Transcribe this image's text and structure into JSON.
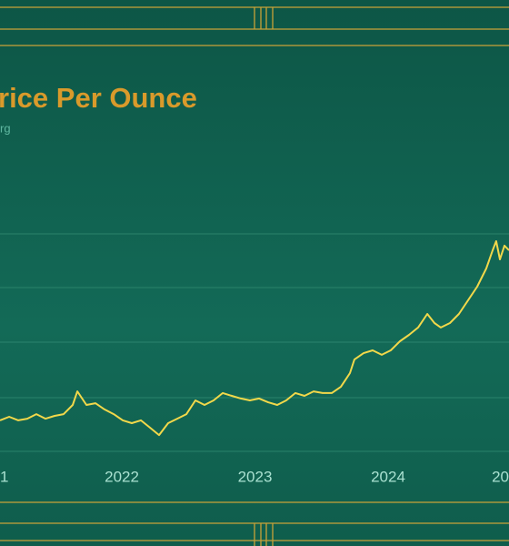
{
  "chart_data": {
    "type": "line",
    "title": "rice Per Ounce",
    "subtitle": "rg",
    "x": [
      2021.085,
      2021.154,
      2021.222,
      2021.29,
      2021.358,
      2021.427,
      2021.495,
      2021.563,
      2021.631,
      2021.666,
      2021.734,
      2021.802,
      2021.87,
      2021.939,
      2022.007,
      2022.075,
      2022.143,
      2022.212,
      2022.28,
      2022.348,
      2022.416,
      2022.485,
      2022.553,
      2022.621,
      2022.689,
      2022.758,
      2022.826,
      2022.894,
      2022.962,
      2023.031,
      2023.099,
      2023.167,
      2023.235,
      2023.304,
      2023.372,
      2023.44,
      2023.508,
      2023.577,
      2023.645,
      2023.713,
      2023.747,
      2023.816,
      2023.884,
      2023.952,
      2024.02,
      2024.089,
      2024.157,
      2024.225,
      2024.294,
      2024.348,
      2024.396,
      2024.464,
      2024.532,
      2024.601,
      2024.669,
      2024.737,
      2024.785,
      2024.812,
      2024.84,
      2024.874,
      2024.908
    ],
    "values": [
      1784,
      1803,
      1784,
      1793,
      1817,
      1793,
      1808,
      1817,
      1866,
      1938,
      1866,
      1875,
      1842,
      1817,
      1784,
      1769,
      1784,
      1745,
      1706,
      1769,
      1793,
      1817,
      1890,
      1866,
      1890,
      1929,
      1914,
      1900,
      1890,
      1900,
      1880,
      1866,
      1890,
      1929,
      1914,
      1938,
      1929,
      1929,
      1962,
      2035,
      2107,
      2141,
      2156,
      2132,
      2156,
      2204,
      2238,
      2277,
      2349,
      2301,
      2277,
      2301,
      2349,
      2422,
      2494,
      2591,
      2687,
      2736,
      2639,
      2712,
      2687
    ],
    "color": "#f2d84a",
    "xlim": [
      2021.085,
      2024.908
    ],
    "ylim": [
      1600,
      3050
    ],
    "xticks": [
      {
        "value": 2021,
        "label": "1"
      },
      2022,
      2023,
      2024,
      {
        "value": 2025,
        "label": "20"
      }
    ]
  }
}
